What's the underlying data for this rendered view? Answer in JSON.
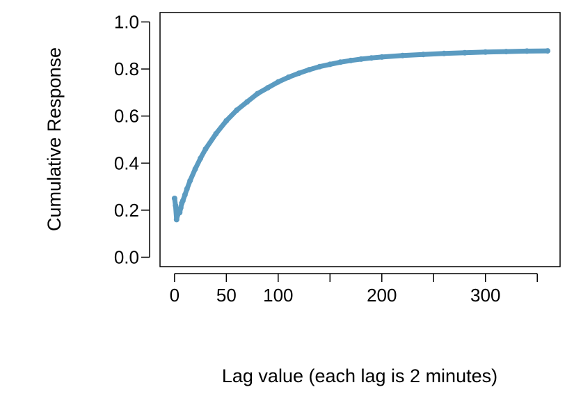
{
  "chart_data": {
    "type": "line",
    "title": "",
    "xlabel": "Lag value (each lag is 2 minutes)",
    "ylabel": "Cumulative Response",
    "xlim": [
      -14,
      372
    ],
    "ylim": [
      -0.04,
      1.04
    ],
    "x_ticks": [
      0,
      50,
      100,
      150,
      200,
      250,
      300,
      350
    ],
    "x_tick_labels": [
      "0",
      "50",
      "100",
      "",
      "200",
      "",
      "300",
      ""
    ],
    "y_ticks": [
      0.0,
      0.2,
      0.4,
      0.6,
      0.8,
      1.0
    ],
    "y_tick_labels": [
      "0.0",
      "0.2",
      "0.4",
      "0.6",
      "0.8",
      "1.0"
    ],
    "grid": false,
    "series": [
      {
        "color": "#5b9bc1",
        "x": [
          0,
          1,
          2,
          3,
          4,
          5,
          6,
          7,
          8,
          10,
          12,
          15,
          20,
          25,
          30,
          40,
          50,
          60,
          70,
          80,
          90,
          100,
          110,
          120,
          130,
          140,
          150,
          160,
          170,
          180,
          190,
          200,
          220,
          240,
          260,
          280,
          300,
          320,
          340,
          360
        ],
        "y": [
          0.25,
          0.22,
          0.16,
          0.18,
          0.2,
          0.19,
          0.21,
          0.23,
          0.24,
          0.265,
          0.29,
          0.325,
          0.375,
          0.42,
          0.46,
          0.525,
          0.58,
          0.625,
          0.66,
          0.695,
          0.72,
          0.745,
          0.765,
          0.782,
          0.797,
          0.81,
          0.82,
          0.829,
          0.836,
          0.842,
          0.847,
          0.851,
          0.857,
          0.862,
          0.866,
          0.869,
          0.872,
          0.874,
          0.876,
          0.877
        ]
      }
    ]
  }
}
